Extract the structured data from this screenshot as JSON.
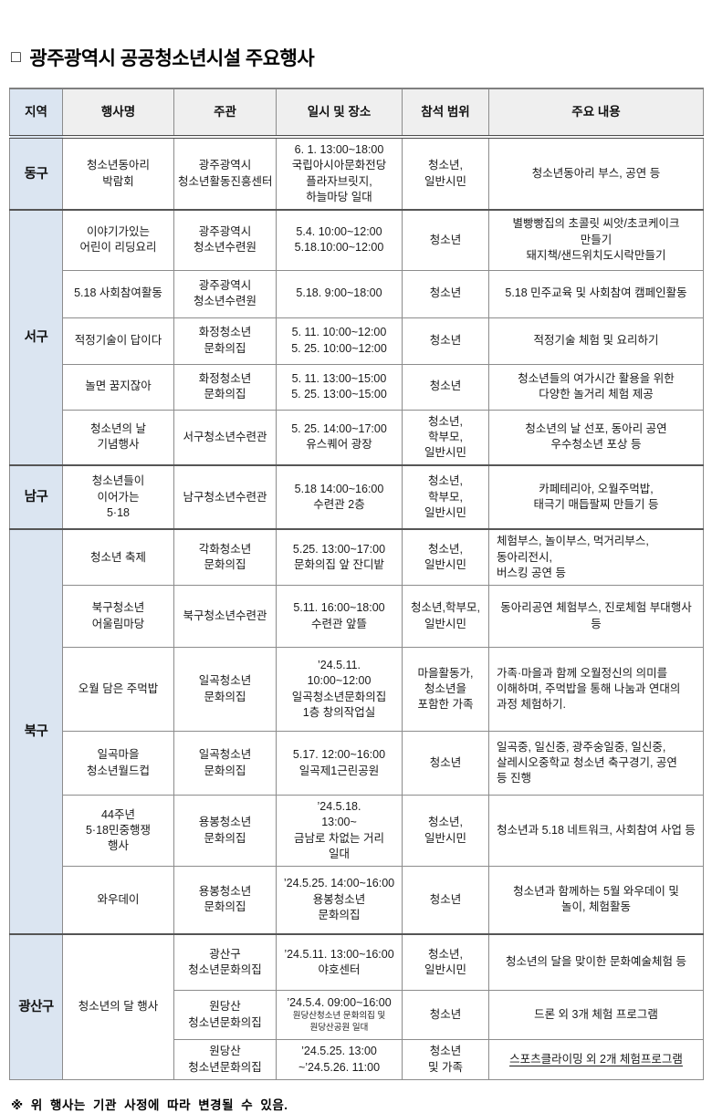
{
  "title": {
    "bullet": "□",
    "text": "광주광역시 공공청소년시설 주요행사"
  },
  "footnote": "※ 위 행사는 기관 사정에 따라 변경될 수 있음.",
  "colors": {
    "region_bg": "#dbe5f1",
    "header_bg": "#efefef",
    "border": "#8c8c8c",
    "border_dark": "#555555"
  },
  "table": {
    "headers": [
      "지역",
      "행사명",
      "주관",
      "일시 및 장소",
      "참석 범위",
      "주요 내용"
    ],
    "groups": [
      {
        "region": "동구",
        "rows": [
          {
            "event": "청소년동아리\n박람회",
            "organizer": "광주광역시\n청소년활동진흥센터",
            "when": "6. 1. 13:00~18:00\n국립아시아문화전당\n플라자브릿지,\n하늘마당 일대",
            "attendees": "청소년,\n일반시민",
            "content": "청소년동아리 부스, 공연 등",
            "content_align": "center"
          }
        ]
      },
      {
        "region": "서구",
        "rows": [
          {
            "event": "이야기가있는\n어린이 리딩요리",
            "organizer": "광주광역시\n청소년수련원",
            "when": "5.4.  10:00~12:00\n5.18.10:00~12:00",
            "attendees": "청소년",
            "content": "별빵빵집의 초콜릿 씨앗/초코케이크 만들기\n돼지책/샌드위치도시락만들기",
            "content_align": "center"
          },
          {
            "event": "5.18 사회참여활동",
            "organizer": "광주광역시\n청소년수련원",
            "when": "5.18.  9:00~18:00",
            "attendees": "청소년",
            "content": "5.18 민주교육 및 사회참여 캠페인활동",
            "content_align": "center"
          },
          {
            "event": "적정기술이 답이다",
            "organizer": "화정청소년\n문화의집",
            "when": "5. 11. 10:00~12:00\n5. 25. 10:00~12:00",
            "attendees": "청소년",
            "content": "적정기술 체험  및 요리하기",
            "content_align": "center"
          },
          {
            "event": "놀면 꿈지잖아",
            "organizer": "화정청소년\n문화의집",
            "when": "5. 11. 13:00~15:00\n5. 25. 13:00~15:00",
            "attendees": "청소년",
            "content": "청소년들의 여가시간 활용을  위한\n다양한 놀거리 체험 제공",
            "content_align": "center"
          },
          {
            "event": "청소년의 날\n기념행사",
            "organizer": "서구청소년수련관",
            "when": "5. 25. 14:00~17:00\n유스퀘어 광장",
            "attendees": "청소년,\n학부모,\n일반시민",
            "content": "청소년의 날 선포, 동아리 공연\n우수청소년 포상 등",
            "content_align": "center"
          }
        ]
      },
      {
        "region": "남구",
        "rows": [
          {
            "event": "청소년들이\n이어가는\n5·18",
            "organizer": "남구청소년수련관",
            "when": "5.18 14:00~16:00\n수련관 2층",
            "attendees": "청소년,\n학부모,\n일반시민",
            "content": "카페테리아, 오월주먹밥,\n태극기 매듭팔찌 만들기 등",
            "content_align": "center"
          }
        ]
      },
      {
        "region": "북구",
        "rows": [
          {
            "event": "청소년 축제",
            "organizer": "각화청소년\n문화의집",
            "when": "5.25. 13:00~17:00\n문화의집 앞 잔디밭",
            "attendees": "청소년,\n일반시민",
            "content": "체험부스, 놀이부스, 먹거리부스, 동아리전시,\n버스킹 공연 등",
            "content_align": "left"
          },
          {
            "event": "북구청소년\n어울림마당",
            "organizer": "북구청소년수련관",
            "when": "5.11. 16:00~18:00\n수련관 앞뜰",
            "attendees": "청소년,학부모,\n일반시민",
            "content": "동아리공연 체험부스, 진로체험 부대행사 등",
            "content_align": "center"
          },
          {
            "event": "오월 담은 주먹밥",
            "organizer": "일곡청소년\n문화의집",
            "when": "’24.5.11.\n10:00~12:00\n일곡청소년문화의집\n1층 창의작업실",
            "attendees": "마을활동가,\n청소년을\n포함한 가족",
            "content": "가족·마을과 함께 오월정신의 의미를\n이해하며, 주먹밥을 통해 나눔과 연대의\n과정 체험하기.",
            "content_align": "left"
          },
          {
            "event": "일곡마을\n청소년월드컵",
            "organizer": "일곡청소년\n문화의집",
            "when": "5.17. 12:00~16:00\n일곡제1근린공원",
            "attendees": "청소년",
            "content": "일곡중, 일신중, 광주숭일중,  일신중,\n살레시오중학교 청소년 축구경기,  공연\n등 진행",
            "content_align": "left"
          },
          {
            "event": "44주년\n5·18민중행쟁\n행사",
            "organizer": "용봉청소년\n문화의집",
            "when": "’24.5.18.\n13:00~\n금남로 차없는 거리\n일대",
            "attendees": "청소년,\n일반시민",
            "content": "청소년과 5.18 네트워크, 사회참여 사업 등",
            "content_align": "center"
          },
          {
            "event": "와우데이",
            "organizer": "용봉청소년\n문화의집",
            "when": "’24.5.25. 14:00~16:00\n용봉청소년\n문화의집",
            "attendees": "청소년",
            "content": "청소년과 함께하는 5월 와우데이 및\n놀이, 체험활동",
            "content_align": "center"
          }
        ]
      },
      {
        "region": "광산구",
        "event_merged": "청소년의 달 행사",
        "rows": [
          {
            "organizer": "광산구\n청소년문화의집",
            "when": "’24.5.11. 13:00~16:00\n야호센터",
            "attendees": "청소년,\n일반시민",
            "content": "청소년의 달을 맞이한 문화예술체험 등",
            "content_align": "center"
          },
          {
            "organizer": "원당산\n청소년문화의집",
            "when": "’24.5.4. 09:00~16:00",
            "when_small": "원당산청소년 문화의집 및\n원당산공원 일대",
            "attendees": "청소년",
            "content": "드론 외 3개 체험 프로그램",
            "content_align": "center"
          },
          {
            "organizer": "원당산\n청소년문화의집",
            "when": "’24.5.25. 13:00\n~’24.5.26. 11:00",
            "attendees": "청소년\n및 가족",
            "content": "스포츠클라이밍 외 2개 체험프로그램",
            "content_align": "center",
            "content_underline": true
          }
        ]
      }
    ]
  }
}
